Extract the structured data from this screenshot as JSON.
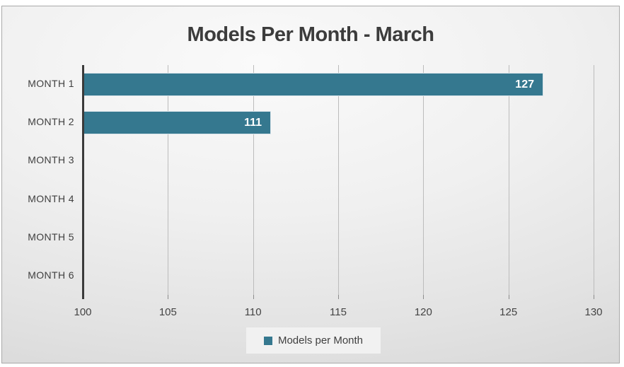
{
  "chart_data": {
    "type": "bar",
    "orientation": "horizontal",
    "title": "Models Per Month - March",
    "categories": [
      "MONTH 1",
      "MONTH 2",
      "MONTH 3",
      "MONTH 4",
      "MONTH 5",
      "MONTH 6"
    ],
    "series": [
      {
        "name": "Models per Month",
        "values": [
          127,
          111,
          null,
          null,
          null,
          null
        ]
      }
    ],
    "data_labels": [
      "127",
      "111"
    ],
    "xlim": [
      100,
      130
    ],
    "xticks": [
      100,
      105,
      110,
      115,
      120,
      125,
      130
    ],
    "grid": true,
    "legend_position": "bottom",
    "bar_color": "#35788f",
    "axis_color": "#3a3a3a",
    "gridline_color": "#bcbcbc",
    "value_label_color": "#ffffff"
  },
  "legend": {
    "label": "Models per Month"
  }
}
